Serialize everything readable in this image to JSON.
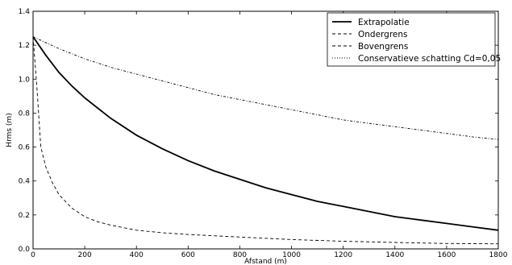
{
  "chart_data": {
    "type": "line",
    "xlabel": "Afstand (m)",
    "ylabel": "Hrms (m)",
    "xlim": [
      0,
      1800
    ],
    "ylim": [
      0,
      1.4
    ],
    "xticks": [
      "0",
      "200",
      "400",
      "600",
      "800",
      "1000",
      "1200",
      "1400",
      "1600",
      "1800"
    ],
    "yticks": [
      "0.0",
      "0.2",
      "0.4",
      "0.6",
      "0.8",
      "1.0",
      "1.2",
      "1.4"
    ],
    "grid": false,
    "legend_position": "top-right",
    "series": [
      {
        "name": "Extrapolatie",
        "style": "solid",
        "color": "#000000",
        "x": [
          0,
          50,
          100,
          150,
          200,
          300,
          400,
          500,
          600,
          700,
          800,
          900,
          1000,
          1100,
          1200,
          1300,
          1400,
          1500,
          1600,
          1700,
          1800
        ],
        "y": [
          1.25,
          1.14,
          1.04,
          0.96,
          0.89,
          0.77,
          0.67,
          0.59,
          0.52,
          0.46,
          0.41,
          0.36,
          0.32,
          0.28,
          0.25,
          0.22,
          0.19,
          0.17,
          0.15,
          0.13,
          0.11
        ]
      },
      {
        "name": "Ondergrens",
        "style": "dashed",
        "color": "#000000",
        "x": [
          0,
          15,
          30,
          50,
          75,
          100,
          150,
          200,
          250,
          300,
          400,
          500,
          600,
          800,
          1000,
          1200,
          1400,
          1600,
          1800
        ],
        "y": [
          1.25,
          0.95,
          0.6,
          0.48,
          0.39,
          0.32,
          0.24,
          0.19,
          0.16,
          0.14,
          0.11,
          0.095,
          0.085,
          0.07,
          0.055,
          0.045,
          0.038,
          0.032,
          0.03
        ]
      },
      {
        "name": "Bovengrens",
        "style": "dashed",
        "color": "#000000",
        "x": [],
        "y": []
      },
      {
        "name": "Conservatieve schatting Cd=0,05",
        "style": "dashdot",
        "color": "#000000",
        "x": [
          0,
          100,
          200,
          300,
          400,
          500,
          600,
          700,
          800,
          900,
          1000,
          1100,
          1200,
          1300,
          1400,
          1500,
          1600,
          1700,
          1800
        ],
        "y": [
          1.25,
          1.18,
          1.12,
          1.07,
          1.03,
          0.99,
          0.95,
          0.91,
          0.88,
          0.85,
          0.82,
          0.79,
          0.76,
          0.74,
          0.72,
          0.7,
          0.68,
          0.66,
          0.645
        ]
      }
    ]
  }
}
